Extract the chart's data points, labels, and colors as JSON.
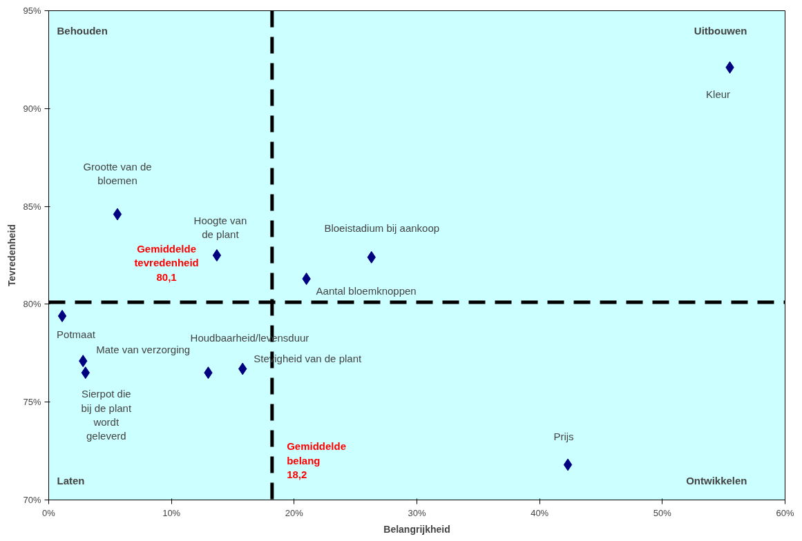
{
  "chart_data": {
    "type": "scatter",
    "xlabel": "Belangrijkheid",
    "ylabel": "Tevredenheid",
    "x": [
      55.5,
      5.6,
      13.7,
      26.3,
      21.0,
      1.1,
      2.8,
      3.0,
      13.0,
      15.8,
      42.3
    ],
    "series": [
      {
        "color": "#000080",
        "values": [
          92.1,
          84.6,
          82.5,
          82.4,
          81.3,
          79.4,
          77.1,
          76.5,
          76.5,
          76.7,
          71.8
        ]
      }
    ],
    "marker": "diamond",
    "xlim": [
      0,
      60
    ],
    "ylim": [
      70,
      95
    ],
    "xticks": [
      {
        "value": 0,
        "label": "0%"
      },
      {
        "value": 10,
        "label": "10%"
      },
      {
        "value": 20,
        "label": "20%"
      },
      {
        "value": 30,
        "label": "30%"
      },
      {
        "value": 40,
        "label": "40%"
      },
      {
        "value": 50,
        "label": "50%"
      },
      {
        "value": 60,
        "label": "60%"
      }
    ],
    "yticks": [
      {
        "value": 70,
        "label": "70%"
      },
      {
        "value": 75,
        "label": "75%"
      },
      {
        "value": 80,
        "label": "80%"
      },
      {
        "value": 85,
        "label": "85%"
      },
      {
        "value": 90,
        "label": "90%"
      },
      {
        "value": 95,
        "label": "95%"
      }
    ],
    "grid": false,
    "ref_lines": [
      {
        "axis": "y",
        "value": 80.1,
        "label": "Gemiddelde tevredenheid 80,1",
        "color": "#000000",
        "line_style": "dashed"
      },
      {
        "axis": "x",
        "value": 18.2,
        "label": "Gemiddelde belang 18,2",
        "color": "#000000",
        "line_style": "dashed"
      }
    ],
    "annotations": [
      {
        "text": "Kleur",
        "x": 55.5,
        "y": 92.1
      },
      {
        "text": "Grootte van de bloemen",
        "x": 5.6,
        "y": 84.6
      },
      {
        "text": "Hoogte van de plant",
        "x": 13.7,
        "y": 82.5
      },
      {
        "text": "Bloeistadium bij aankoop",
        "x": 26.3,
        "y": 82.4
      },
      {
        "text": "Aantal bloemknoppen",
        "x": 21.0,
        "y": 81.3
      },
      {
        "text": "Potmaat",
        "x": 1.1,
        "y": 79.4
      },
      {
        "text": "Mate van verzorging",
        "x": 2.8,
        "y": 77.1
      },
      {
        "text": "Sierpot die bij de plant wordt geleverd",
        "x": 3.0,
        "y": 76.5
      },
      {
        "text": "Houdbaarheid/levensduur",
        "x": 13.0,
        "y": 76.5
      },
      {
        "text": "Stevigheid van de plant",
        "x": 15.8,
        "y": 76.7
      },
      {
        "text": "Prijs",
        "x": 42.3,
        "y": 71.8
      },
      "Behouden",
      "Uitbouwen",
      "Laten",
      "Ontwikkelen"
    ]
  }
}
